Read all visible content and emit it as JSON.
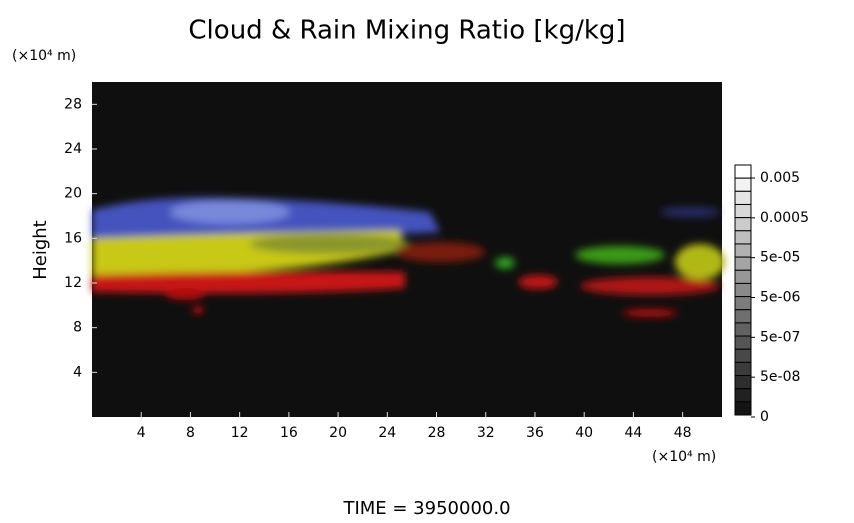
{
  "chart_data": {
    "type": "image",
    "title": "Cloud & Rain Mixing Ratio [kg/kg]",
    "y_unit": "(×10⁴ m)",
    "ylabel": "Height",
    "x_unit": "(×10⁴ m)",
    "xlim": [
      0,
      51.2
    ],
    "xticks": [
      4,
      8,
      12,
      16,
      20,
      24,
      28,
      32,
      36,
      40,
      44,
      48
    ],
    "ylim": [
      0,
      30
    ],
    "yticks": [
      4,
      8,
      12,
      16,
      20,
      24,
      28
    ],
    "colorbar_ticks": [
      0.005,
      0.0005,
      {
        "value": 5e-05,
        "label": "5e-05"
      },
      {
        "value": 5e-06,
        "label": "5e-06"
      },
      {
        "value": 5e-07,
        "label": "5e-07"
      },
      {
        "value": 5e-08,
        "label": "5e-08"
      },
      0
    ],
    "footer": "TIME = 3950000.0"
  }
}
